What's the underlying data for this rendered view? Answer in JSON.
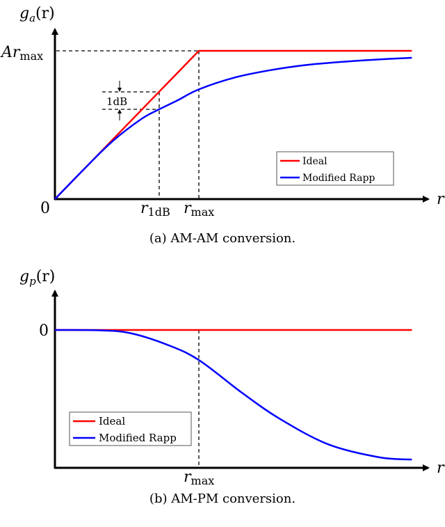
{
  "chart_data": [
    {
      "type": "line",
      "title": "",
      "caption": "(a) AM-AM conversion.",
      "ylabel": "g_a(r)",
      "ylabel_main": "g",
      "ylabel_sub": "a",
      "ylabel_arg": "(r)",
      "xlabel": "r",
      "origin_label": "0",
      "y_tick": {
        "main": "Ar",
        "sub": "max",
        "value": 1.0
      },
      "x_ticks": [
        {
          "main": "r",
          "sub": "1dB",
          "value": 0.725
        },
        {
          "main": "r",
          "sub": "max",
          "value": 1.0
        }
      ],
      "annotation": "1dB",
      "xlim": [
        0,
        2.6
      ],
      "ylim": [
        0,
        1.0
      ],
      "legend_position": "lower-right",
      "series": [
        {
          "name": "Ideal",
          "color": "#ff0000",
          "x": [
            0,
            1.0,
            2.48
          ],
          "y": [
            0,
            1.0,
            1.0
          ]
        },
        {
          "name": "Modified Rapp",
          "color": "#0000ff",
          "x": [
            0,
            0.2,
            0.4,
            0.6,
            0.725,
            0.85,
            1.0,
            1.25,
            1.5,
            1.75,
            2.0,
            2.25,
            2.48
          ],
          "y": [
            0,
            0.2,
            0.39,
            0.54,
            0.606,
            0.665,
            0.74,
            0.82,
            0.87,
            0.905,
            0.926,
            0.942,
            0.953
          ]
        }
      ]
    },
    {
      "type": "line",
      "title": "",
      "caption": "(b) AM-PM conversion.",
      "ylabel": "g_p(r)",
      "ylabel_main": "g",
      "ylabel_sub": "p",
      "ylabel_arg": "(r)",
      "xlabel": "r",
      "y_tick": {
        "main": "0",
        "value": 0
      },
      "x_ticks": [
        {
          "main": "r",
          "sub": "max",
          "value": 1.0
        }
      ],
      "xlim": [
        0,
        2.6
      ],
      "ylim": [
        -1.0,
        0.2
      ],
      "legend_position": "lower-left",
      "series": [
        {
          "name": "Ideal",
          "color": "#ff0000",
          "x": [
            0,
            2.48
          ],
          "y": [
            0,
            0
          ]
        },
        {
          "name": "Modified Rapp",
          "color": "#0000ff",
          "x": [
            0,
            0.3,
            0.52,
            0.78,
            1.0,
            1.3,
            1.56,
            1.9,
            2.25,
            2.48
          ],
          "y": [
            0,
            -0.002,
            -0.022,
            -0.107,
            -0.218,
            -0.456,
            -0.643,
            -0.83,
            -0.923,
            -0.94
          ]
        }
      ]
    }
  ]
}
